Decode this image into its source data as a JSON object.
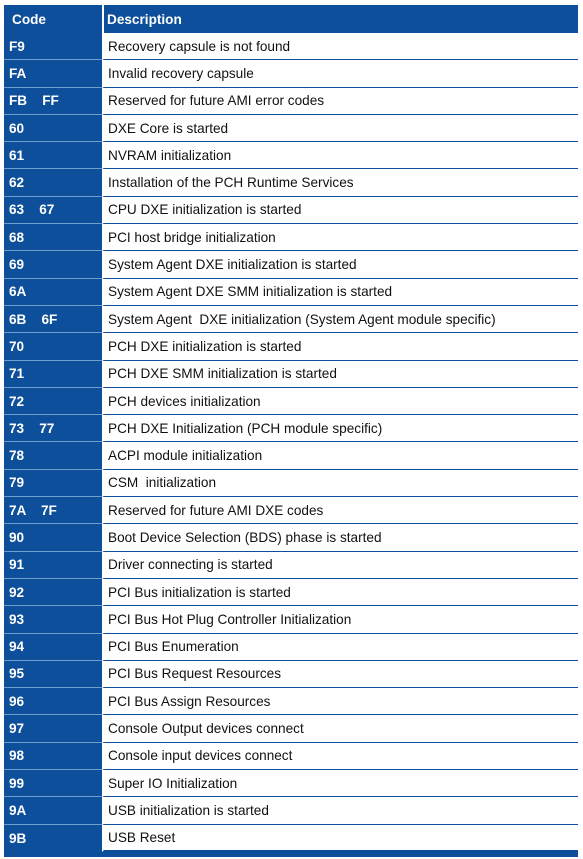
{
  "headers": {
    "code": "Code",
    "description": "Description"
  },
  "rows": [
    {
      "code": "F9",
      "desc": "Recovery capsule is not found"
    },
    {
      "code": "FA",
      "desc": "Invalid recovery capsule"
    },
    {
      "code": "FB    FF",
      "desc": "Reserved for future AMI error codes"
    },
    {
      "code": "60",
      "desc": "DXE Core is started"
    },
    {
      "code": "61",
      "desc": "NVRAM initialization"
    },
    {
      "code": "62",
      "desc": "Installation of the PCH Runtime Services"
    },
    {
      "code": "63    67",
      "desc": "CPU DXE initialization is started"
    },
    {
      "code": "68",
      "desc": "PCI host bridge initialization"
    },
    {
      "code": "69",
      "desc": "System Agent DXE initialization is started"
    },
    {
      "code": "6A",
      "desc": "System Agent DXE SMM initialization is started"
    },
    {
      "code": "6B    6F",
      "desc": "System Agent  DXE initialization (System Agent module specific)"
    },
    {
      "code": "70",
      "desc": "PCH DXE initialization is started"
    },
    {
      "code": "71",
      "desc": "PCH DXE SMM initialization is started"
    },
    {
      "code": "72",
      "desc": "PCH devices initialization"
    },
    {
      "code": "73    77",
      "desc": "PCH DXE Initialization (PCH module specific)"
    },
    {
      "code": "78",
      "desc": "ACPI module initialization"
    },
    {
      "code": "79",
      "desc": "CSM  initialization"
    },
    {
      "code": "7A    7F",
      "desc": "Reserved for future AMI DXE codes"
    },
    {
      "code": "90",
      "desc": "Boot Device Selection (BDS) phase is started"
    },
    {
      "code": "91",
      "desc": "Driver connecting is started"
    },
    {
      "code": "92",
      "desc": "PCI Bus initialization is started"
    },
    {
      "code": "93",
      "desc": "PCI Bus Hot Plug Controller Initialization"
    },
    {
      "code": "94",
      "desc": "PCI Bus Enumeration"
    },
    {
      "code": "95",
      "desc": "PCI Bus Request Resources"
    },
    {
      "code": "96",
      "desc": "PCI Bus Assign Resources"
    },
    {
      "code": "97",
      "desc": "Console Output devices connect"
    },
    {
      "code": "98",
      "desc": "Console input devices connect"
    },
    {
      "code": "99",
      "desc": "Super IO Initialization"
    },
    {
      "code": "9A",
      "desc": "USB initialization is started"
    },
    {
      "code": "9B",
      "desc": "USB Reset"
    }
  ],
  "colors": {
    "header_blue": "#0d4f9a",
    "row_text": "#111111"
  }
}
